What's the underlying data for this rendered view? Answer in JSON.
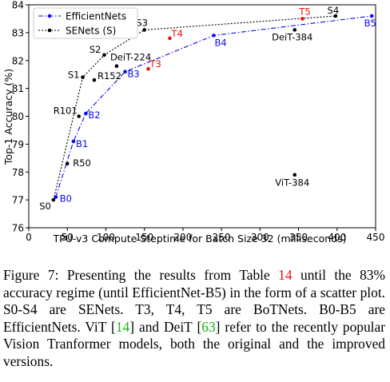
{
  "chart_data": {
    "type": "scatter",
    "title": "",
    "xlabel": "TPU-v3 Compute Steptime for Batch Size 32 (milliseconds)",
    "ylabel": "Top-1 Accuracy (%)",
    "xlim": [
      0,
      450
    ],
    "ylim": [
      76,
      84
    ],
    "xticks": [
      "0",
      "50",
      "100",
      "150",
      "200",
      "250",
      "300",
      "350",
      "400",
      "450"
    ],
    "yticks": [
      "76",
      "77",
      "78",
      "79",
      "80",
      "81",
      "82",
      "83",
      "84"
    ],
    "grid": false,
    "legend_position": "top-left",
    "series": [
      {
        "name": "EfficientNets",
        "color": "#0a0af0",
        "line": "dash-dot",
        "marker": "circle",
        "points": [
          {
            "label": "B0",
            "x": 35,
            "y": 77.1
          },
          {
            "label": "B1",
            "x": 58,
            "y": 79.1
          },
          {
            "label": "B2",
            "x": 74,
            "y": 80.1
          },
          {
            "label": "B3",
            "x": 125,
            "y": 81.6
          },
          {
            "label": "B4",
            "x": 240,
            "y": 82.9
          },
          {
            "label": "B5",
            "x": 445,
            "y": 83.6
          }
        ]
      },
      {
        "name": "SENets (S)",
        "color": "#000000",
        "line": "dotted",
        "marker": "circle",
        "points": [
          {
            "label": "S0",
            "x": 32,
            "y": 77.0
          },
          {
            "label": "S1",
            "x": 70,
            "y": 81.4
          },
          {
            "label": "S2",
            "x": 98,
            "y": 82.2
          },
          {
            "label": "S3",
            "x": 150,
            "y": 83.1
          },
          {
            "label": "S4",
            "x": 398,
            "y": 83.6
          }
        ]
      }
    ],
    "standalone_points": [
      {
        "label": "R50",
        "x": 50,
        "y": 78.3,
        "color": "#000000"
      },
      {
        "label": "R101",
        "x": 65,
        "y": 80.0,
        "color": "#000000"
      },
      {
        "label": "R152",
        "x": 85,
        "y": 81.3,
        "color": "#000000"
      },
      {
        "label": "DeiT-224",
        "x": 114,
        "y": 81.8,
        "color": "#000000"
      },
      {
        "label": "DeiT-384",
        "x": 345,
        "y": 83.1,
        "color": "#000000"
      },
      {
        "label": "ViT-384",
        "x": 345,
        "y": 77.9,
        "color": "#000000"
      },
      {
        "label": "T3",
        "x": 155,
        "y": 81.7,
        "color": "#e8120e"
      },
      {
        "label": "T4",
        "x": 183,
        "y": 82.8,
        "color": "#e8120e"
      },
      {
        "label": "T5",
        "x": 355,
        "y": 83.5,
        "color": "#e8120e"
      }
    ]
  },
  "caption": {
    "prefix": "Figure 7: Presenting the results from Table ",
    "table_ref": "14",
    "middle1": " until the 83% accuracy regime (until EfficientNet-B5) in the form of a scatter plot. S0-S4 are SENets. T3, T4, T5 are BoTNets. B0-B5 are EfficientNets. ViT [",
    "cite_vit": "14",
    "middle2": "] and DeiT [",
    "cite_deit": "63",
    "suffix": "] refer to the recently popular Vision Tranformer models, both the original and the improved versions."
  }
}
